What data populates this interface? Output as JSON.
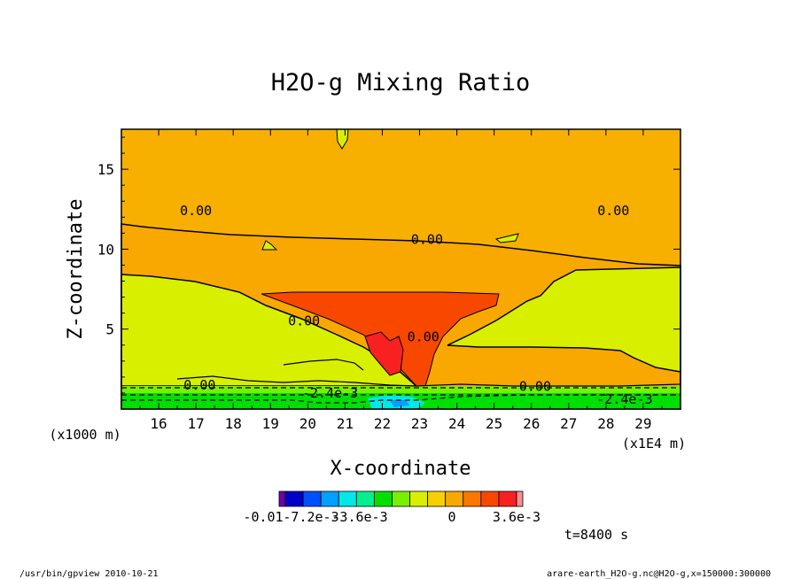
{
  "chart_data": {
    "type": "heatmap",
    "title": "H2O-g Mixing Ratio",
    "xlabel": "X-coordinate",
    "ylabel": "Z-coordinate",
    "x_unit_left": "(x1000 m)",
    "x_unit_right": "(x1E4 m)",
    "x_ticks": [
      "16",
      "17",
      "18",
      "19",
      "20",
      "21",
      "22",
      "23",
      "24",
      "25",
      "26",
      "27",
      "28",
      "29"
    ],
    "y_ticks": [
      "5",
      "10",
      "15"
    ],
    "xlim": [
      15.0,
      30.0
    ],
    "ylim": [
      0.0,
      17.5
    ],
    "contour_labels": [
      {
        "text": "0.00",
        "x": 17.0,
        "y": 12.4
      },
      {
        "text": "0.00",
        "x": 28.2,
        "y": 12.4
      },
      {
        "text": "0.00",
        "x": 23.2,
        "y": 10.6
      },
      {
        "text": "0.00",
        "x": 19.9,
        "y": 5.5
      },
      {
        "text": "0.00",
        "x": 23.1,
        "y": 4.5
      },
      {
        "text": "0.00",
        "x": 17.1,
        "y": 1.5
      },
      {
        "text": "0.00",
        "x": 26.1,
        "y": 1.4
      },
      {
        "text": "-2.4e-3",
        "x": 20.6,
        "y": 1.0
      },
      {
        "text": "-2.4e-3",
        "x": 28.5,
        "y": 0.6
      }
    ],
    "colorbar": {
      "colors": [
        "#7000a8",
        "#0000c8",
        "#0050ff",
        "#00a0ff",
        "#00e8e8",
        "#00f090",
        "#00e000",
        "#78f000",
        "#d8f000",
        "#f8d000",
        "#f8a800",
        "#f87800",
        "#f84800",
        "#f82020",
        "#f89090"
      ],
      "labels": [
        "-0.01",
        "-7.2e-3",
        "-3.6e-3",
        "0",
        "3.6e-3"
      ]
    },
    "time_label": "t=8400 s"
  },
  "footer": {
    "left": "/usr/bin/gpview  2010-10-21",
    "right": "arare-earth_H2O-g.nc@H2O-g,x=150000:300000"
  }
}
